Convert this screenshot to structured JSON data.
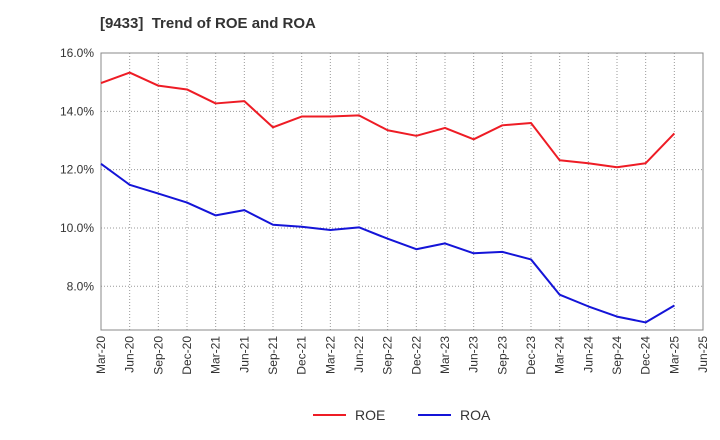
{
  "chart_data": {
    "type": "line",
    "title": "[9433]  Trend of ROE and ROA",
    "xlabel": "",
    "ylabel": "",
    "categories": [
      "Mar-20",
      "Jun-20",
      "Sep-20",
      "Dec-20",
      "Mar-21",
      "Jun-21",
      "Sep-21",
      "Dec-21",
      "Mar-22",
      "Jun-22",
      "Sep-22",
      "Dec-22",
      "Mar-23",
      "Jun-23",
      "Sep-23",
      "Dec-23",
      "Mar-24",
      "Jun-24",
      "Sep-24",
      "Dec-24",
      "Mar-25",
      "Jun-25"
    ],
    "ylim": [
      6.5,
      16.0
    ],
    "yticks": [
      8.0,
      10.0,
      12.0,
      14.0,
      16.0
    ],
    "ytick_labels": [
      "8.0%",
      "10.0%",
      "12.0%",
      "14.0%",
      "16.0%"
    ],
    "grid": true,
    "legend_position": "bottom",
    "series": [
      {
        "name": "ROE",
        "color": "#ee1c25",
        "values": [
          14.97,
          15.33,
          14.88,
          14.75,
          14.27,
          14.35,
          13.45,
          13.82,
          13.82,
          13.86,
          13.35,
          13.16,
          13.43,
          13.04,
          13.52,
          13.6,
          12.32,
          12.22,
          12.08,
          12.22,
          13.24,
          null
        ]
      },
      {
        "name": "ROA",
        "color": "#1414d8",
        "values": [
          12.2,
          11.48,
          11.18,
          10.87,
          10.43,
          10.61,
          10.11,
          10.04,
          9.93,
          10.02,
          9.63,
          9.27,
          9.47,
          9.13,
          9.18,
          8.92,
          7.71,
          7.31,
          6.96,
          6.76,
          7.34,
          null
        ]
      }
    ]
  }
}
